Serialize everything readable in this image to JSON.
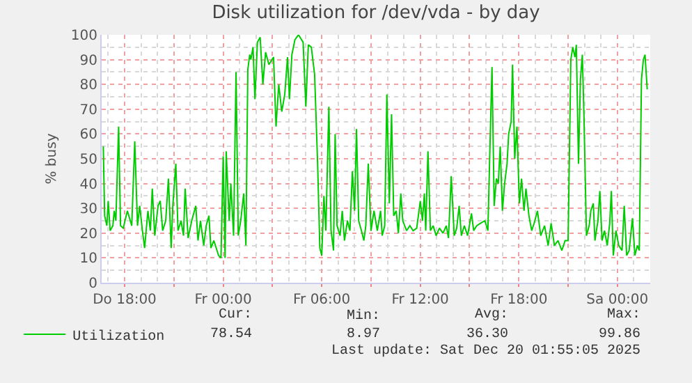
{
  "chart_data": {
    "type": "line",
    "title": "Disk utilization for /dev/vda - by day",
    "ylabel": "% busy",
    "x": [
      "2025-12-18T16:42",
      "2025-12-18T16:47",
      "2025-12-18T16:55",
      "2025-12-18T17:00",
      "2025-12-18T17:07",
      "2025-12-18T17:17",
      "2025-12-18T17:22",
      "2025-12-18T17:28",
      "2025-12-18T17:38",
      "2025-12-18T17:45",
      "2025-12-18T17:55",
      "2025-12-18T18:10",
      "2025-12-18T18:26",
      "2025-12-18T18:37",
      "2025-12-18T18:47",
      "2025-12-18T18:55",
      "2025-12-18T19:05",
      "2025-12-18T19:13",
      "2025-12-18T19:25",
      "2025-12-18T19:34",
      "2025-12-18T19:41",
      "2025-12-18T19:50",
      "2025-12-18T20:02",
      "2025-12-18T20:10",
      "2025-12-18T20:19",
      "2025-12-18T20:30",
      "2025-12-18T20:40",
      "2025-12-18T20:50",
      "2025-12-18T20:56",
      "2025-12-18T21:07",
      "2025-12-18T21:15",
      "2025-12-18T21:26",
      "2025-12-18T21:35",
      "2025-12-18T21:41",
      "2025-12-18T21:52",
      "2025-12-18T22:05",
      "2025-12-18T22:20",
      "2025-12-18T22:28",
      "2025-12-18T22:37",
      "2025-12-18T22:49",
      "2025-12-18T22:58",
      "2025-12-18T23:08",
      "2025-12-18T23:15",
      "2025-12-18T23:26",
      "2025-12-18T23:43",
      "2025-12-18T23:52",
      "2025-12-19T00:00",
      "2025-12-19T00:07",
      "2025-12-19T00:11",
      "2025-12-19T00:22",
      "2025-12-19T00:28",
      "2025-12-19T00:38",
      "2025-12-19T00:47",
      "2025-12-19T00:55",
      "2025-12-19T01:04",
      "2025-12-19T01:15",
      "2025-12-19T01:23",
      "2025-12-19T01:30",
      "2025-12-19T01:37",
      "2025-12-19T01:41",
      "2025-12-19T01:49",
      "2025-12-19T01:56",
      "2025-12-19T02:05",
      "2025-12-19T02:15",
      "2025-12-19T02:25",
      "2025-12-19T02:35",
      "2025-12-19T02:47",
      "2025-12-19T03:04",
      "2025-12-19T03:13",
      "2025-12-19T03:23",
      "2025-12-19T03:34",
      "2025-12-19T03:45",
      "2025-12-19T03:55",
      "2025-12-19T04:02",
      "2025-12-19T04:11",
      "2025-12-19T04:22",
      "2025-12-19T04:35",
      "2025-12-19T04:52",
      "2025-12-19T05:02",
      "2025-12-19T05:11",
      "2025-12-19T05:22",
      "2025-12-19T05:34",
      "2025-12-19T05:45",
      "2025-12-19T05:53",
      "2025-12-19T06:00",
      "2025-12-19T06:08",
      "2025-12-19T06:15",
      "2025-12-19T06:26",
      "2025-12-19T06:34",
      "2025-12-19T06:43",
      "2025-12-19T06:49",
      "2025-12-19T06:56",
      "2025-12-19T07:07",
      "2025-12-19T07:15",
      "2025-12-19T07:23",
      "2025-12-19T07:34",
      "2025-12-19T07:43",
      "2025-12-19T07:52",
      "2025-12-19T08:00",
      "2025-12-19T08:07",
      "2025-12-19T08:15",
      "2025-12-19T08:25",
      "2025-12-19T08:34",
      "2025-12-19T08:41",
      "2025-12-19T08:50",
      "2025-12-19T09:00",
      "2025-12-19T09:11",
      "2025-12-19T09:23",
      "2025-12-19T09:35",
      "2025-12-19T09:41",
      "2025-12-19T09:50",
      "2025-12-19T09:58",
      "2025-12-19T10:07",
      "2025-12-19T10:15",
      "2025-12-19T10:23",
      "2025-12-19T10:32",
      "2025-12-19T10:40",
      "2025-12-19T10:49",
      "2025-12-19T10:56",
      "2025-12-19T11:10",
      "2025-12-19T11:22",
      "2025-12-19T11:34",
      "2025-12-19T11:47",
      "2025-12-19T12:00",
      "2025-12-19T12:08",
      "2025-12-19T12:15",
      "2025-12-19T12:20",
      "2025-12-19T12:28",
      "2025-12-19T12:37",
      "2025-12-19T12:47",
      "2025-12-19T12:58",
      "2025-12-19T13:10",
      "2025-12-19T13:23",
      "2025-12-19T13:35",
      "2025-12-19T13:43",
      "2025-12-19T13:53",
      "2025-12-19T14:04",
      "2025-12-19T14:13",
      "2025-12-19T14:22",
      "2025-12-19T14:30",
      "2025-12-19T14:41",
      "2025-12-19T14:53",
      "2025-12-19T15:07",
      "2025-12-19T15:15",
      "2025-12-19T15:26",
      "2025-12-19T15:40",
      "2025-12-19T15:56",
      "2025-12-19T16:07",
      "2025-12-19T16:13",
      "2025-12-19T16:22",
      "2025-12-19T16:30",
      "2025-12-19T16:38",
      "2025-12-19T16:45",
      "2025-12-19T16:52",
      "2025-12-19T17:00",
      "2025-12-19T17:08",
      "2025-12-19T17:17",
      "2025-12-19T17:23",
      "2025-12-19T17:32",
      "2025-12-19T17:37",
      "2025-12-19T17:45",
      "2025-12-19T17:53",
      "2025-12-19T18:02",
      "2025-12-19T18:10",
      "2025-12-19T18:19",
      "2025-12-19T18:26",
      "2025-12-19T18:37",
      "2025-12-19T18:47",
      "2025-12-19T18:56",
      "2025-12-19T19:08",
      "2025-12-19T19:20",
      "2025-12-19T19:34",
      "2025-12-19T19:47",
      "2025-12-19T19:58",
      "2025-12-19T20:10",
      "2025-12-19T20:23",
      "2025-12-19T20:37",
      "2025-12-19T20:49",
      "2025-12-19T21:00",
      "2025-12-19T21:10",
      "2025-12-19T21:17",
      "2025-12-19T21:25",
      "2025-12-19T21:30",
      "2025-12-19T21:38",
      "2025-12-19T21:45",
      "2025-12-19T21:52",
      "2025-12-19T21:58",
      "2025-12-19T22:07",
      "2025-12-19T22:17",
      "2025-12-19T22:23",
      "2025-12-19T22:32",
      "2025-12-19T22:38",
      "2025-12-19T22:49",
      "2025-12-19T22:56",
      "2025-12-19T23:04",
      "2025-12-19T23:13",
      "2025-12-19T23:23",
      "2025-12-19T23:32",
      "2025-12-19T23:38",
      "2025-12-19T23:45",
      "2025-12-19T23:55",
      "2025-12-20T00:05",
      "2025-12-20T00:17",
      "2025-12-20T00:25",
      "2025-12-20T00:34",
      "2025-12-20T00:43",
      "2025-12-20T00:55",
      "2025-12-20T01:04",
      "2025-12-20T01:13",
      "2025-12-20T01:20",
      "2025-12-20T01:28",
      "2025-12-20T01:35",
      "2025-12-20T01:41",
      "2025-12-20T01:49"
    ],
    "series": [
      {
        "name": "Utilization",
        "color": "#00cc00",
        "values": [
          55,
          27,
          23,
          33,
          21,
          23,
          29,
          25,
          63,
          23,
          22,
          29,
          23,
          57,
          23,
          31,
          21,
          14,
          29,
          21,
          38,
          19,
          31,
          33,
          21,
          25,
          42,
          14,
          31,
          48,
          21,
          25,
          19,
          38,
          18,
          25,
          31,
          17,
          25,
          15,
          23,
          27,
          14,
          17,
          11,
          10,
          51,
          10,
          53,
          25,
          40,
          19,
          85,
          19,
          25,
          36,
          15,
          86,
          92,
          90,
          95,
          74,
          97,
          99,
          80,
          93,
          88,
          91,
          63,
          80,
          69,
          76,
          91,
          74,
          92,
          98,
          100,
          97,
          71,
          96,
          95,
          84,
          48,
          14,
          11,
          35,
          21,
          71,
          21,
          13,
          60,
          23,
          19,
          29,
          17,
          25,
          21,
          45,
          29,
          62,
          25,
          21,
          17,
          23,
          48,
          21,
          29,
          21,
          29,
          19,
          23,
          76,
          32,
          68,
          27,
          29,
          20,
          36,
          25,
          21,
          23,
          21,
          22,
          33,
          25,
          36,
          21,
          53,
          21,
          23,
          19,
          22,
          20,
          23,
          18,
          43,
          19,
          22,
          31,
          19,
          23,
          19,
          28,
          21,
          23,
          24,
          25,
          21,
          48,
          87,
          31,
          42,
          40,
          55,
          29,
          40,
          48,
          60,
          65,
          88,
          50,
          63,
          32,
          42,
          29,
          38,
          27,
          21,
          24,
          29,
          19,
          23,
          15,
          24,
          15,
          17,
          13,
          17,
          17,
          90,
          95,
          91,
          96,
          48,
          82,
          92,
          67,
          19,
          23,
          29,
          32,
          17,
          25,
          37,
          17,
          21,
          15,
          24,
          37,
          11,
          21,
          15,
          13,
          31,
          11,
          13,
          26,
          11,
          15,
          13,
          82,
          90,
          92,
          78
        ]
      }
    ],
    "xlim": [
      "2025-12-18T16:36",
      "2025-12-20T02:00"
    ],
    "ylim": [
      0,
      100
    ],
    "xticks": [
      {
        "value": "2025-12-18T18:00",
        "label": "Do 18:00"
      },
      {
        "value": "2025-12-18T21:00",
        "label": null
      },
      {
        "value": "2025-12-19T00:00",
        "label": "Fr 00:00"
      },
      {
        "value": "2025-12-19T03:00",
        "label": null
      },
      {
        "value": "2025-12-19T06:00",
        "label": "Fr 06:00"
      },
      {
        "value": "2025-12-19T09:00",
        "label": null
      },
      {
        "value": "2025-12-19T12:00",
        "label": "Fr 12:00"
      },
      {
        "value": "2025-12-19T15:00",
        "label": null
      },
      {
        "value": "2025-12-19T18:00",
        "label": "Fr 18:00"
      },
      {
        "value": "2025-12-19T21:00",
        "label": null
      },
      {
        "value": "2025-12-20T00:00",
        "label": "Sa 00:00"
      }
    ],
    "yticks": [
      0,
      10,
      20,
      30,
      40,
      50,
      60,
      70,
      80,
      90,
      100
    ],
    "grid": true,
    "legend": "bottom left",
    "marker": "none",
    "line_style": "solid",
    "annotations": [
      "Cur:",
      "Min:",
      "Avg:",
      "Max:",
      "78.54",
      "8.97",
      "36.30",
      "99.86",
      "Last update: Sat Dec 20 01:55:05 2025"
    ]
  }
}
